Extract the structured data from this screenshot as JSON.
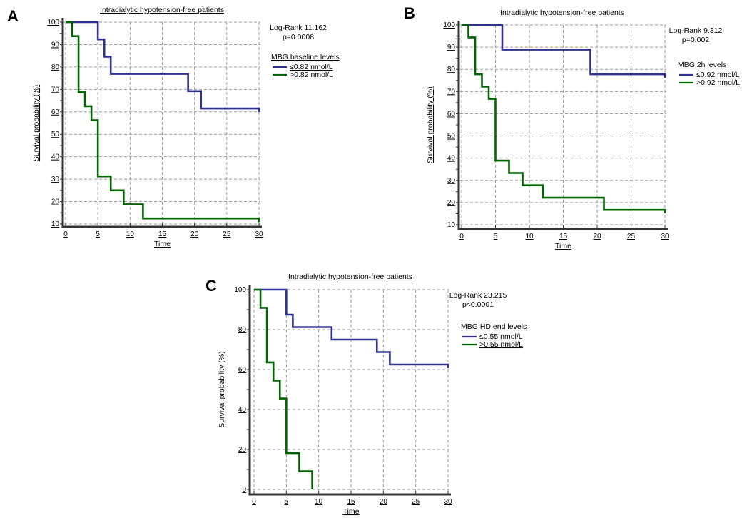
{
  "colors": {
    "low_group": "#2e3192",
    "high_group": "#006400"
  },
  "chart_data": [
    {
      "panel": "A",
      "type": "line",
      "subtype": "kaplan-meier-step",
      "title": "Intradialytic hypotension-free patients",
      "xlabel": "Time",
      "ylabel": "Survival probability (%)",
      "xlim": [
        0,
        30
      ],
      "ylim": [
        10,
        100
      ],
      "xticks": [
        0,
        5,
        10,
        15,
        20,
        25,
        30
      ],
      "yticks": [
        10,
        20,
        30,
        40,
        50,
        60,
        70,
        80,
        90,
        100
      ],
      "grid": true,
      "annotation": [
        "Log-Rank 11.162",
        "p=0.0008"
      ],
      "legend_title": "MBG baseline levels",
      "legend_position": "right",
      "series": [
        {
          "name": "≤0.82 nmol/L",
          "color": "#2e3192",
          "steps": [
            [
              0,
              100
            ],
            [
              5,
              92.3
            ],
            [
              6,
              84.6
            ],
            [
              7,
              76.9
            ],
            [
              19,
              69.2
            ],
            [
              21,
              61.5
            ]
          ],
          "end_time": 30
        },
        {
          "name": ">0.82 nmol/L",
          "color": "#006400",
          "steps": [
            [
              0,
              100
            ],
            [
              1,
              93.75
            ],
            [
              2,
              68.75
            ],
            [
              3,
              62.5
            ],
            [
              4,
              56.25
            ],
            [
              5,
              31.25
            ],
            [
              7,
              25
            ],
            [
              9,
              18.75
            ],
            [
              12,
              12.5
            ]
          ],
          "end_time": 30
        }
      ]
    },
    {
      "panel": "B",
      "type": "line",
      "subtype": "kaplan-meier-step",
      "title": "Intradialytic hypotension-free patients",
      "xlabel": "Time",
      "ylabel": "Survival probability (%)",
      "xlim": [
        0,
        30
      ],
      "ylim": [
        10,
        100
      ],
      "xticks": [
        0,
        5,
        10,
        15,
        20,
        25,
        30
      ],
      "yticks": [
        10,
        20,
        30,
        40,
        50,
        60,
        70,
        80,
        90,
        100
      ],
      "grid": true,
      "annotation": [
        "Log-Rank 9.312",
        "p=0.002"
      ],
      "legend_title": "MBG 2h levels",
      "legend_position": "right",
      "series": [
        {
          "name": "≤0.92 nmol/L",
          "color": "#2e3192",
          "steps": [
            [
              0,
              100
            ],
            [
              6,
              88.9
            ],
            [
              19,
              77.8
            ]
          ],
          "end_time": 30
        },
        {
          "name": ">0.92 nmol/L",
          "color": "#006400",
          "steps": [
            [
              0,
              100
            ],
            [
              1,
              94.4
            ],
            [
              2,
              77.8
            ],
            [
              3,
              72.2
            ],
            [
              4,
              66.7
            ],
            [
              5,
              38.9
            ],
            [
              7,
              33.3
            ],
            [
              9,
              27.8
            ],
            [
              12,
              22.2
            ],
            [
              21,
              16.7
            ]
          ],
          "end_time": 30
        }
      ]
    },
    {
      "panel": "C",
      "type": "line",
      "subtype": "kaplan-meier-step",
      "title": "Intradialytic hypotension-free patients",
      "xlabel": "Time",
      "ylabel": "Survival probability (%)",
      "xlim": [
        0,
        30
      ],
      "ylim": [
        0,
        100
      ],
      "xticks": [
        0,
        5,
        10,
        15,
        20,
        25,
        30
      ],
      "yticks": [
        0,
        20,
        40,
        60,
        80,
        100
      ],
      "grid": true,
      "annotation": [
        "Log-Rank 23.215",
        "p<0.0001"
      ],
      "legend_title": "MBG HD end levels",
      "legend_position": "right",
      "series": [
        {
          "name": "≤0.55 nmol/L",
          "color": "#2e3192",
          "steps": [
            [
              0,
              100
            ],
            [
              5,
              87.5
            ],
            [
              6,
              81.25
            ],
            [
              12,
              75
            ],
            [
              19,
              68.75
            ],
            [
              21,
              62.5
            ]
          ],
          "end_time": 30
        },
        {
          "name": ">0.55 nmol/L",
          "color": "#006400",
          "steps": [
            [
              0,
              100
            ],
            [
              1,
              90.9
            ],
            [
              2,
              63.6
            ],
            [
              3,
              54.5
            ],
            [
              4,
              45.5
            ],
            [
              5,
              18.2
            ],
            [
              7,
              9.1
            ],
            [
              9,
              0
            ]
          ],
          "end_time": 9
        }
      ]
    }
  ]
}
